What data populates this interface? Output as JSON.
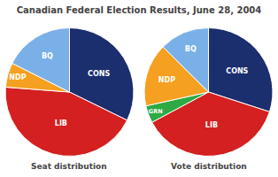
{
  "title": "Canadian Federal Election Results, June 28, 2004",
  "chart_data": [
    {
      "type": "pie",
      "title": "Seat distribution",
      "categories": [
        "CONS",
        "LIB",
        "NDP",
        "BQ"
      ],
      "values": [
        99,
        135,
        19,
        54
      ],
      "colors": [
        "#1b2e6e",
        "#d42020",
        "#f5a020",
        "#7ab0e8"
      ]
    },
    {
      "type": "pie",
      "title": "Vote distribution",
      "categories": [
        "CONS",
        "LIB",
        "GRN",
        "NDP",
        "BQ"
      ],
      "values": [
        29.6,
        36.7,
        4.3,
        15.7,
        12.4
      ],
      "colors": [
        "#1b2e6e",
        "#d42020",
        "#2eaa44",
        "#f5a020",
        "#7ab0e8"
      ]
    }
  ]
}
